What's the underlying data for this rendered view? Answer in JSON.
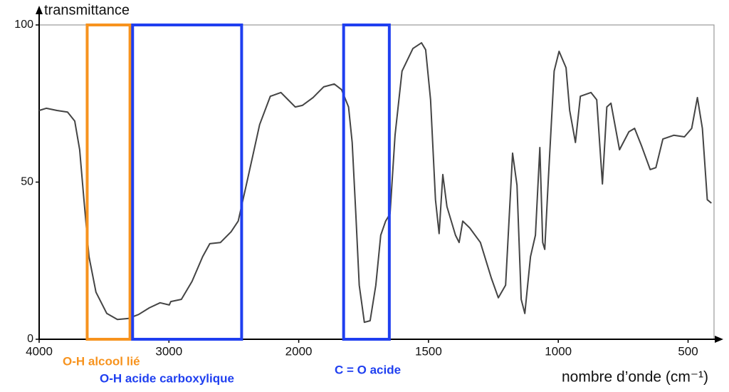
{
  "chart_data": {
    "type": "line",
    "y_label": "transmittance",
    "x_label": "nombre d’onde (cm⁻¹)",
    "xlim": [
      4000,
      400
    ],
    "ylim": [
      0,
      100
    ],
    "xticks": [
      4000,
      3000,
      2000,
      1500,
      1000,
      500
    ],
    "yticks": [
      0,
      50,
      100
    ],
    "series": [
      {
        "color": "#444444",
        "x": [
          4000,
          3945,
          3863,
          3781,
          3726,
          3688,
          3655,
          3616,
          3562,
          3479,
          3397,
          3315,
          3233,
          3151,
          3068,
          2997,
          2986,
          2904,
          2822,
          2740,
          2685,
          2603,
          2521,
          2466,
          2411,
          2356,
          2301,
          2219,
          2137,
          2082,
          2027,
          1986,
          1945,
          1904,
          1863,
          1835,
          1808,
          1794,
          1780,
          1767,
          1747,
          1725,
          1703,
          1684,
          1665,
          1648,
          1629,
          1602,
          1560,
          1527,
          1511,
          1492,
          1473,
          1459,
          1445,
          1429,
          1396,
          1382,
          1368,
          1341,
          1300,
          1258,
          1231,
          1203,
          1176,
          1159,
          1143,
          1129,
          1107,
          1088,
          1071,
          1060,
          1052,
          1038,
          1016,
          997,
          970,
          956,
          934,
          915,
          874,
          852,
          830,
          813,
          797,
          764,
          728,
          706,
          679,
          646,
          624,
          597,
          555,
          514,
          486,
          464,
          445,
          426,
          410
        ],
        "values": [
          72.8,
          73.5,
          72.8,
          72.3,
          69.4,
          60.3,
          44.4,
          26.3,
          15,
          8.2,
          6.3,
          6.6,
          7.9,
          10,
          11.6,
          10.9,
          12,
          12.7,
          18.4,
          26.3,
          30.4,
          30.8,
          34.2,
          37.6,
          47.8,
          58,
          68.3,
          77.3,
          78.5,
          76.2,
          73.9,
          74.4,
          76.9,
          80.3,
          81.2,
          79.4,
          73.9,
          62.6,
          39.9,
          17.2,
          5.4,
          5.9,
          17.2,
          33.1,
          37.6,
          39.9,
          64.9,
          85.3,
          92.5,
          94.3,
          92.1,
          76.2,
          44.4,
          33.6,
          52.4,
          42.2,
          33.1,
          30.8,
          37.6,
          35.4,
          30.8,
          19.5,
          13.2,
          17.2,
          59.2,
          49,
          12.7,
          8.2,
          26.3,
          33.1,
          61,
          30.8,
          28.6,
          51.2,
          85.3,
          91.6,
          86.4,
          72.8,
          62.6,
          77.3,
          78.5,
          76.2,
          49.4,
          73.9,
          75.1,
          60.3,
          66,
          67.1,
          61.5,
          54,
          54.6,
          63.7,
          64.9,
          64.4,
          67.1,
          76.9,
          67.1,
          44.4,
          43.3
        ]
      }
    ],
    "annotations": [
      {
        "text": "O-H alcool lié",
        "color": "#f7931e",
        "range": [
          3630,
          3300
        ]
      },
      {
        "text": "O-H acide carboxylique",
        "color": "#1f3ff0",
        "range": [
          3280,
          2440
        ]
      },
      {
        "text": "C = O acide",
        "color": "#1f3ff0",
        "range": [
          1827,
          1651
        ]
      }
    ]
  }
}
